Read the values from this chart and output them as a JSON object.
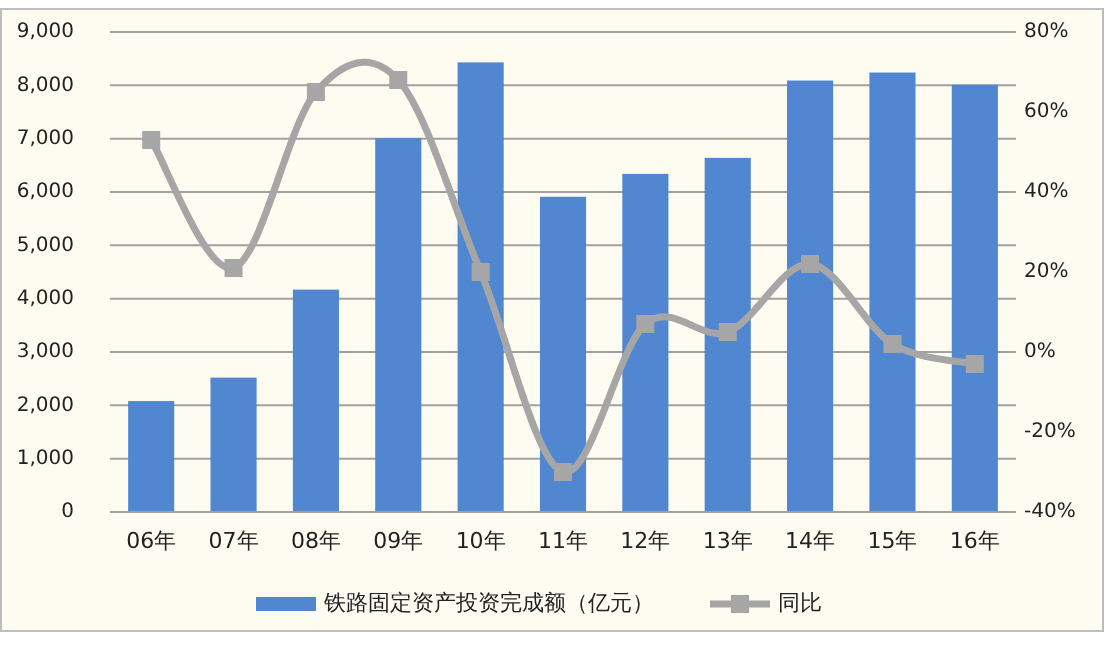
{
  "chart_data": {
    "type": "bar",
    "categories": [
      "06年",
      "07年",
      "08年",
      "09年",
      "10年",
      "11年",
      "12年",
      "13年",
      "14年",
      "15年",
      "16年"
    ],
    "series": [
      {
        "name": "铁路固定资产投资完成额（亿元）",
        "color": "#5087d0",
        "values": [
          2080,
          2520,
          4170,
          7010,
          8430,
          5910,
          6340,
          6640,
          8090,
          8240,
          8010
        ]
      },
      {
        "name": "同比",
        "type": "line",
        "axis": "y2",
        "color": "#a6a6a6",
        "marker": "square",
        "values": [
          53,
          21,
          65,
          68,
          20,
          -30,
          7,
          5,
          22,
          2,
          -3
        ]
      }
    ],
    "ylim": [
      0,
      9000
    ],
    "yticks": [
      {
        "value": 0,
        "label": "0"
      },
      {
        "value": 1000,
        "label": "1,000"
      },
      {
        "value": 2000,
        "label": "2,000"
      },
      {
        "value": 3000,
        "label": "3,000"
      },
      {
        "value": 4000,
        "label": "4,000"
      },
      {
        "value": 5000,
        "label": "5,000"
      },
      {
        "value": 6000,
        "label": "6,000"
      },
      {
        "value": 7000,
        "label": "7,000"
      },
      {
        "value": 8000,
        "label": "8,000"
      },
      {
        "value": 9000,
        "label": "9,000"
      }
    ],
    "y2lim": [
      -40,
      80
    ],
    "y2ticks": [
      {
        "value": -40,
        "label": "-40%"
      },
      {
        "value": -20,
        "label": "-20%"
      },
      {
        "value": 0,
        "label": "0%"
      },
      {
        "value": 20,
        "label": "20%"
      },
      {
        "value": 40,
        "label": "40%"
      },
      {
        "value": 60,
        "label": "60%"
      },
      {
        "value": 80,
        "label": "80%"
      }
    ],
    "grid": "y",
    "legend": "bottom"
  }
}
